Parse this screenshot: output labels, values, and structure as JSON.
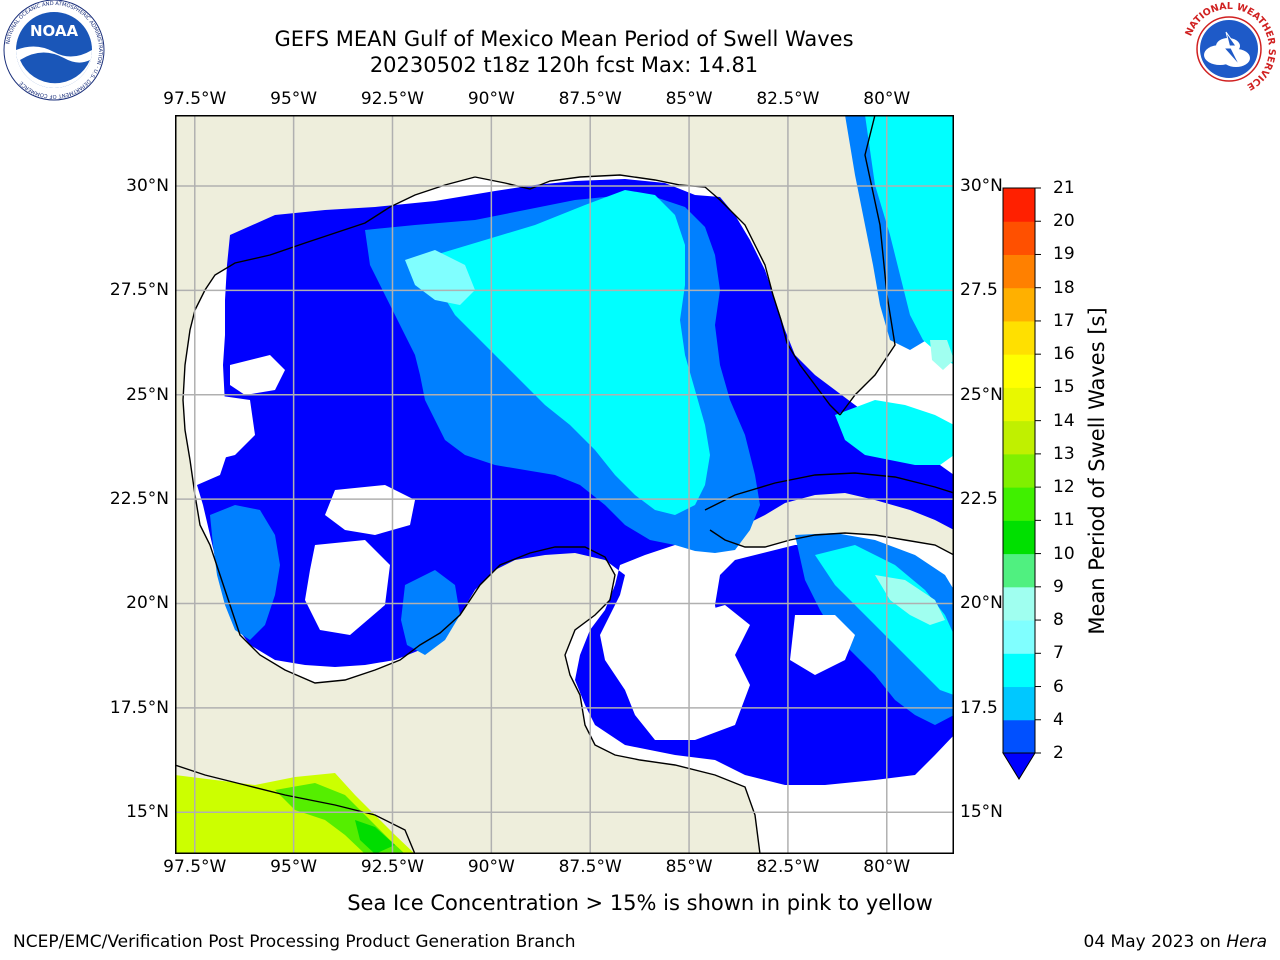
{
  "title": {
    "line1": "GEFS MEAN Gulf of Mexico Mean Period of Swell Waves",
    "line2": "20230502 t18z 120h fcst   Max: 14.81"
  },
  "subtitle": "Sea Ice Concentration > 15% is shown in pink to yellow",
  "footer": {
    "left": "NCEP/EMC/Verification Post Processing Product Generation Branch",
    "right_date": "04 May 2023 on",
    "right_host": "Hera"
  },
  "logos": {
    "noaa_text": "NOAA",
    "noaa_ring": "NATIONAL OCEANIC AND ATMOSPHERIC ADMINISTRATION · U.S. DEPARTMENT OF COMMERCE",
    "nws_ring": "NATIONAL WEATHER SERVICE"
  },
  "map": {
    "lon_ticks": [
      "97.5°W",
      "95°W",
      "92.5°W",
      "90°W",
      "87.5°W",
      "85°W",
      "82.5°W",
      "80°W"
    ],
    "lon_values": [
      -97.5,
      -95,
      -92.5,
      -90,
      -87.5,
      -85,
      -82.5,
      -80
    ],
    "lat_ticks_left": [
      "30°N",
      "27.5°N",
      "25°N",
      "22.5°N",
      "20°N",
      "17.5°N",
      "15°N"
    ],
    "lat_ticks_right": [
      "30°N",
      "27.5",
      "25°N",
      "22.5",
      "20°N",
      "17.5",
      "15°N"
    ],
    "lat_values": [
      30,
      27.5,
      25,
      22.5,
      20,
      17.5,
      15
    ],
    "lon_range": [
      -98,
      -78.3
    ],
    "lat_range": [
      14,
      31.7
    ],
    "colors": {
      "land": "#eeeedc",
      "grid": "#b0b0b0",
      "coast": "#000000"
    }
  },
  "colorbar": {
    "label": "Mean Period of Swell Waves [s]",
    "ticks": [
      "2",
      "4",
      "6",
      "7",
      "8",
      "9",
      "10",
      "11",
      "12",
      "13",
      "14",
      "15",
      "16",
      "17",
      "18",
      "19",
      "20",
      "21"
    ],
    "colors": [
      "#0050ff",
      "#00c8ff",
      "#00ffff",
      "#80ffff",
      "#a0fff0",
      "#50f080",
      "#00e000",
      "#40f000",
      "#80f000",
      "#c0f000",
      "#e8f800",
      "#ffff00",
      "#ffe000",
      "#ffb000",
      "#ff8000",
      "#ff5000",
      "#ff2000"
    ],
    "extend_color": "#0000ff"
  },
  "chart_data": {
    "type": "heatmap",
    "variable": "Mean Period of Swell Waves [s]",
    "max": 14.81,
    "levels": [
      2,
      4,
      6,
      7,
      8,
      9,
      10,
      11,
      12,
      13,
      14,
      15,
      16,
      17,
      18,
      19,
      20,
      21
    ],
    "colors": {
      "below_2": "#0000ff",
      "2_4": "#0080ff",
      "4_6": "#00c0ff",
      "6_7": "#00ffff",
      "7_8": "#40ffff",
      "8_9": "#a0fff0",
      "10_11": "#00e000",
      "12_13": "#c0f000",
      "13_14": "#e0ff00"
    }
  }
}
